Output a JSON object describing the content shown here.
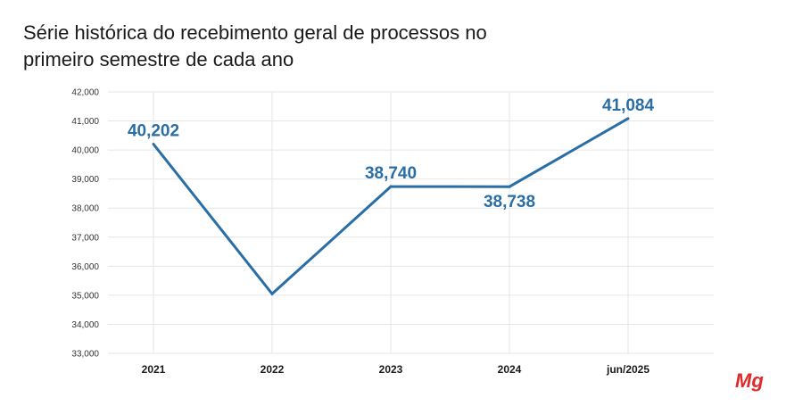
{
  "title": "Série histórica do recebimento geral de processos no primeiro semestre de cada ano",
  "colors": {
    "line": "#2a6ea6",
    "grid": "#e6e6e6",
    "logo": "#e02a2a"
  },
  "logo_text": "Mg",
  "chart_data": {
    "type": "line",
    "title": "Série histórica do recebimento geral de processos no primeiro semestre de cada ano",
    "categories": [
      "2021",
      "2022",
      "2023",
      "2024",
      "jun/2025"
    ],
    "series": [
      {
        "values": [
          40202,
          35050,
          38740,
          38738,
          41084
        ],
        "labels": [
          "40,202",
          "",
          "38,740",
          "38,738",
          "41,084"
        ]
      }
    ],
    "ylim": [
      33000,
      42000
    ],
    "yticks": [
      33000,
      34000,
      35000,
      36000,
      37000,
      38000,
      39000,
      40000,
      41000,
      42000
    ],
    "ytick_labels": [
      "33,000",
      "34,000",
      "35,000",
      "36,000",
      "37,000",
      "38,000",
      "39,000",
      "40,000",
      "41,000",
      "42,000"
    ],
    "grid": true,
    "legend": "none",
    "xlabel": "",
    "ylabel": ""
  }
}
